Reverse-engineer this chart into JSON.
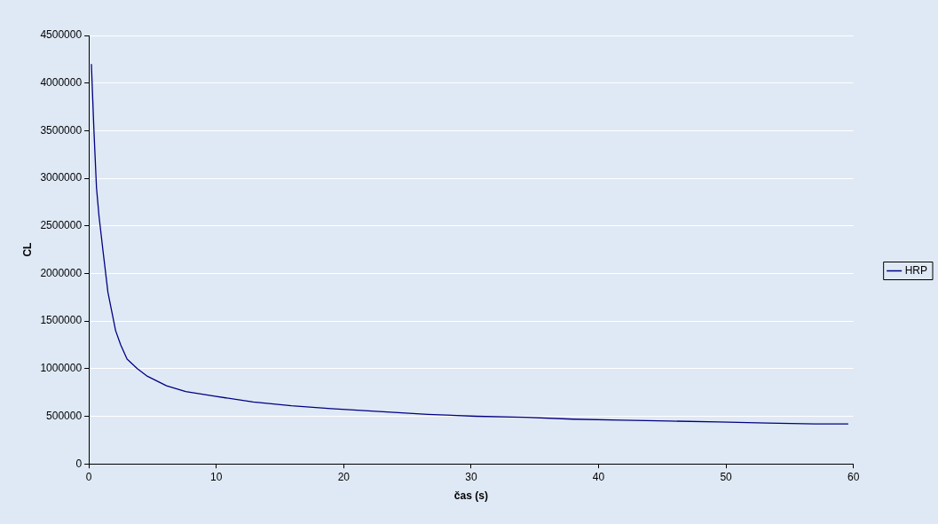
{
  "chart_data": {
    "type": "line",
    "xlabel": "čas (s)",
    "ylabel": "CL",
    "x": [
      0.2,
      0.4,
      0.6,
      0.8,
      1.1,
      1.5,
      1.8,
      2.1,
      2.5,
      3,
      3.8,
      4.6,
      6.1,
      7.6,
      9.9,
      12.9,
      15.9,
      19,
      22.8,
      26.6,
      30.4,
      34.2,
      38,
      41.8,
      45.6,
      49.4,
      53.2,
      57,
      59.6
    ],
    "series": [
      {
        "name": "HRP",
        "color": "#000080",
        "values": [
          4200000,
          3500000,
          2900000,
          2600000,
          2250000,
          1800000,
          1600000,
          1400000,
          1250000,
          1100000,
          1000000,
          920000,
          820000,
          760000,
          710000,
          650000,
          610000,
          580000,
          550000,
          520000,
          500000,
          490000,
          470000,
          460000,
          450000,
          440000,
          430000,
          420000,
          420000
        ]
      }
    ],
    "xlim": [
      0,
      60
    ],
    "xticks": [
      0,
      10,
      20,
      30,
      40,
      50,
      60
    ],
    "ylim": [
      0,
      4500000
    ],
    "yticks": [
      0,
      500000,
      1000000,
      1500000,
      2000000,
      2500000,
      3000000,
      3500000,
      4000000,
      4500000
    ],
    "grid": "y",
    "legend": "right",
    "marker": "none",
    "line_style": "solid"
  }
}
